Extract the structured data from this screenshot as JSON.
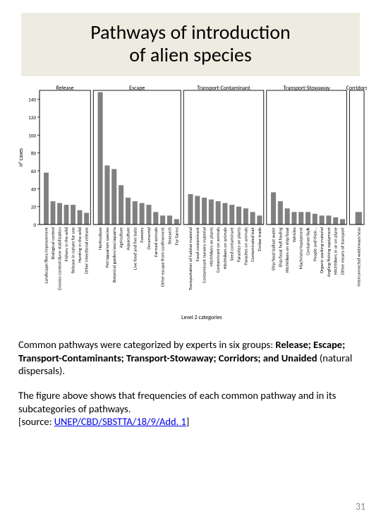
{
  "title": "Pathways of introduction\nof alien species",
  "chart": {
    "type": "bar",
    "ylabel": "n° cases",
    "xlabel": "Level 2 categories",
    "ylim": [
      0,
      150
    ],
    "yticks": [
      0,
      20,
      40,
      60,
      80,
      100,
      120,
      140
    ],
    "bar_color": "#808080",
    "axis_color": "#000000",
    "grid_color": "#c0c0c0",
    "panel_border": "#000000",
    "label_fontsize": 8,
    "tick_fontsize": 7,
    "rotated_label_fontsize": 6.5,
    "panels": [
      {
        "name": "Release",
        "bars": [
          {
            "label": "Landscape/flora improvement",
            "value": 58
          },
          {
            "label": "Biological control",
            "value": 26
          },
          {
            "label": "Erosion control/dune stabilization",
            "value": 24
          },
          {
            "label": "Fishery in the wild",
            "value": 22
          },
          {
            "label": "Release in nature for use",
            "value": 22
          },
          {
            "label": "Hunting in the wild",
            "value": 16
          },
          {
            "label": "Other intentional release",
            "value": 13
          }
        ]
      },
      {
        "name": "Escape",
        "bars": [
          {
            "label": "Horticulture",
            "value": 148
          },
          {
            "label": "Pet/aquarium species",
            "value": 66
          },
          {
            "label": "Botanical garden/zoo/aquaria",
            "value": 62
          },
          {
            "label": "Agriculture",
            "value": 44
          },
          {
            "label": "Aquaculture",
            "value": 30
          },
          {
            "label": "Live food and live baits",
            "value": 26
          },
          {
            "label": "Forestry",
            "value": 24
          },
          {
            "label": "Ornamental",
            "value": 22
          },
          {
            "label": "Farmed animals",
            "value": 14
          },
          {
            "label": "Other escape from confinement",
            "value": 10
          },
          {
            "label": "Research",
            "value": 10
          },
          {
            "label": "Fur farms",
            "value": 6
          }
        ]
      },
      {
        "name": "Transport-Contaminant",
        "bars": [
          {
            "label": "Transportation of habitat material",
            "value": 34
          },
          {
            "label": "Food contaminant",
            "value": 32
          },
          {
            "label": "Contaminant nursery material",
            "value": 30
          },
          {
            "label": "Hitchhikers on plants",
            "value": 28
          },
          {
            "label": "Contaminant on animals",
            "value": 26
          },
          {
            "label": "Hitchhikers on animals",
            "value": 24
          },
          {
            "label": "Seed contaminant",
            "value": 22
          },
          {
            "label": "Parasites on plants",
            "value": 20
          },
          {
            "label": "Parasites on animals",
            "value": 18
          },
          {
            "label": "Contaminated bait",
            "value": 14
          },
          {
            "label": "Timber trade",
            "value": 10
          }
        ]
      },
      {
        "name": "Transport-Stowaway",
        "bars": [
          {
            "label": "Ship/boat ballast water",
            "value": 36
          },
          {
            "label": "Ship/boat hull fouling",
            "value": 26
          },
          {
            "label": "Hitchhikers on ship/boat",
            "value": 18
          },
          {
            "label": "Vehicles",
            "value": 14
          },
          {
            "label": "Machinery/equipment",
            "value": 14
          },
          {
            "label": "Container/bulk",
            "value": 14
          },
          {
            "label": "People and their…",
            "value": 12
          },
          {
            "label": "Organic packing material",
            "value": 10
          },
          {
            "label": "Angling/fishing equipment",
            "value": 10
          },
          {
            "label": "Hitchhikers in or on plane",
            "value": 8
          },
          {
            "label": "Other means of transport",
            "value": 6
          }
        ]
      },
      {
        "name": "Corridors",
        "bars": [
          {
            "label": "Interconnected waterways/seas",
            "value": 14
          }
        ]
      }
    ]
  },
  "para1_prefix": "Common pathways were categorized by experts in six groups: ",
  "para1_bold": "Release; Escape; Transport-Contaminants; Transport-Stowaway; Corridors; and Unaided ",
  "para1_suffix": "(natural dispersals).",
  "para2_a": "The figure above shows that frequencies of each common pathway and in its subcategories of pathways.",
  "para2_b": "[source: ",
  "link_text": "UNEP/CBD/SBSTTA/18/9/Add. 1",
  "para2_c": "]",
  "page_number": "31"
}
